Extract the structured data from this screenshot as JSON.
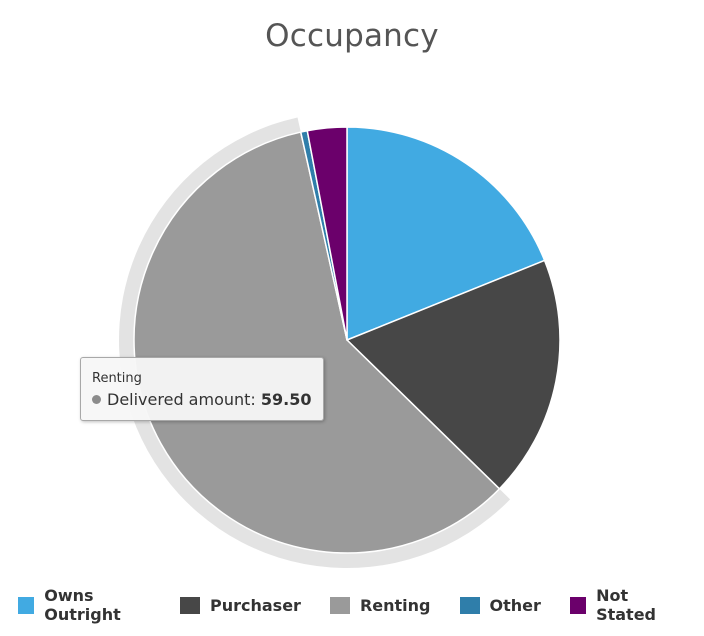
{
  "chart_data": {
    "type": "pie",
    "title": "Occupancy",
    "series_name": "Delivered amount",
    "slices": [
      {
        "name": "Owns Outright",
        "value": 19.0,
        "color": "#41aae2"
      },
      {
        "name": "Purchaser",
        "value": 18.5,
        "color": "#474747"
      },
      {
        "name": "Renting",
        "value": 59.5,
        "color": "#9a9a9a"
      },
      {
        "name": "Other",
        "value": 0.5,
        "color": "#2f7eaa"
      },
      {
        "name": "Not Stated",
        "value": 3.0,
        "color": "#6b006b"
      }
    ],
    "hovered_slice": "Renting",
    "legend_position": "bottom"
  },
  "tooltip": {
    "title": "Renting",
    "label": "Delivered amount:",
    "value": "59.50"
  },
  "legend": {
    "items": [
      {
        "label": "Owns Outright",
        "color": "#41aae2"
      },
      {
        "label": "Purchaser",
        "color": "#474747"
      },
      {
        "label": "Renting",
        "color": "#9a9a9a"
      },
      {
        "label": "Other",
        "color": "#2f7eaa"
      },
      {
        "label": "Not Stated",
        "color": "#6b006b"
      }
    ]
  }
}
